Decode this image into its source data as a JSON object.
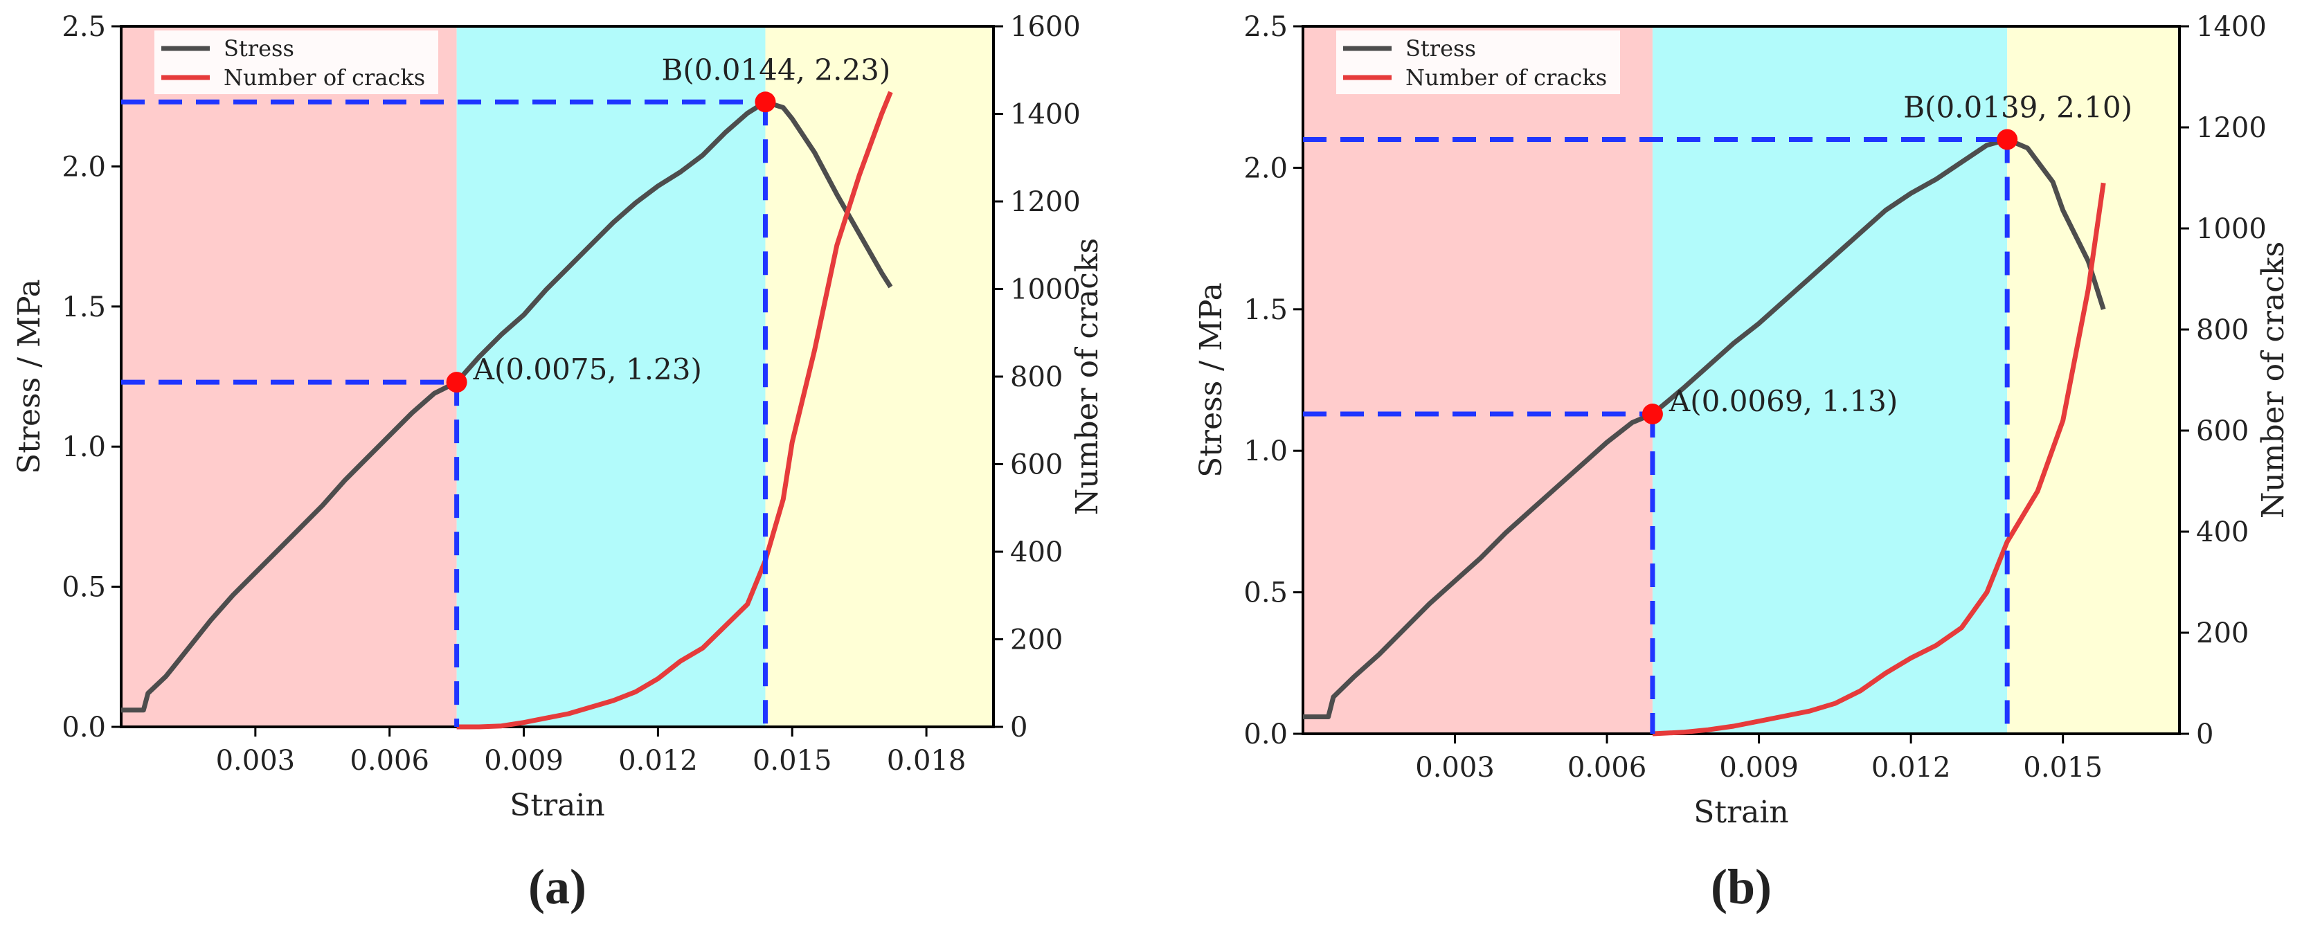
{
  "colors": {
    "stress": "#4d4d4d",
    "cracks": "#e63b3b",
    "guide": "#1f35ff",
    "marker": "#ff0a0a",
    "zone1": "#ffcccc",
    "zone2": "#b2fbfb",
    "zone3": "#ffffd6"
  },
  "chart_data": [
    {
      "type": "line",
      "panel_label": "(a)",
      "xlabel": "Strain",
      "ylabel": "Stress / MPa",
      "y2label": "Number of cracks",
      "xlim": [
        0,
        0.0195
      ],
      "ylim": [
        0,
        2.5
      ],
      "y2lim": [
        0,
        1600
      ],
      "x_ticks": [
        "0.003",
        "0.006",
        "0.009",
        "0.012",
        "0.015",
        "0.018"
      ],
      "y_ticks": [
        "0.0",
        "0.5",
        "1.0",
        "1.5",
        "2.0",
        "2.5"
      ],
      "y2_ticks": [
        "0",
        "200",
        "400",
        "600",
        "800",
        "1000",
        "1200",
        "1400",
        "1600"
      ],
      "legend": [
        "Stress",
        "Number of cracks"
      ],
      "legend_position": "top-left",
      "zones": [
        [
          0,
          0.0075
        ],
        [
          0.0075,
          0.0144
        ],
        [
          0.0144,
          0.0195
        ]
      ],
      "points": [
        {
          "label": "A(0.0075, 1.23)",
          "x": 0.0075,
          "y": 1.23
        },
        {
          "label": "B(0.0144, 2.23)",
          "x": 0.0144,
          "y": 2.23
        }
      ],
      "series": [
        {
          "name": "Stress",
          "axis": "left",
          "x": [
            0,
            0.0005,
            0.0006,
            0.001,
            0.0015,
            0.002,
            0.0025,
            0.003,
            0.0035,
            0.004,
            0.0045,
            0.005,
            0.0055,
            0.006,
            0.0065,
            0.007,
            0.0075,
            0.008,
            0.0085,
            0.009,
            0.0095,
            0.01,
            0.0105,
            0.011,
            0.0115,
            0.012,
            0.0125,
            0.013,
            0.0135,
            0.014,
            0.0144,
            0.0148,
            0.015,
            0.0155,
            0.016,
            0.0165,
            0.017,
            0.0172
          ],
          "values": [
            0.06,
            0.06,
            0.12,
            0.18,
            0.28,
            0.38,
            0.47,
            0.55,
            0.63,
            0.71,
            0.79,
            0.88,
            0.96,
            1.04,
            1.12,
            1.19,
            1.23,
            1.32,
            1.4,
            1.47,
            1.56,
            1.64,
            1.72,
            1.8,
            1.87,
            1.93,
            1.98,
            2.04,
            2.12,
            2.19,
            2.23,
            2.21,
            2.17,
            2.05,
            1.9,
            1.76,
            1.62,
            1.57
          ]
        },
        {
          "name": "Number of cracks",
          "axis": "right",
          "x": [
            0.0075,
            0.008,
            0.0085,
            0.009,
            0.0095,
            0.01,
            0.0105,
            0.011,
            0.0115,
            0.012,
            0.0125,
            0.013,
            0.0135,
            0.014,
            0.0144,
            0.0148,
            0.015,
            0.0155,
            0.016,
            0.0165,
            0.017,
            0.0172
          ],
          "values": [
            0,
            0,
            2,
            10,
            20,
            30,
            45,
            60,
            80,
            110,
            150,
            180,
            230,
            280,
            380,
            520,
            650,
            860,
            1100,
            1260,
            1400,
            1450
          ]
        }
      ]
    },
    {
      "type": "line",
      "panel_label": "(b)",
      "xlabel": "Strain",
      "ylabel": "Stress / MPa",
      "y2label": "Number of cracks",
      "xlim": [
        0,
        0.0173
      ],
      "ylim": [
        0,
        2.5
      ],
      "y2lim": [
        0,
        1400
      ],
      "x_ticks": [
        "0.003",
        "0.006",
        "0.009",
        "0.012",
        "0.015"
      ],
      "y_ticks": [
        "0.0",
        "0.5",
        "1.0",
        "1.5",
        "2.0",
        "2.5"
      ],
      "y2_ticks": [
        "0",
        "200",
        "400",
        "600",
        "800",
        "1000",
        "1200",
        "1400"
      ],
      "legend": [
        "Stress",
        "Number of cracks"
      ],
      "legend_position": "top-left",
      "zones": [
        [
          0,
          0.0069
        ],
        [
          0.0069,
          0.0139
        ],
        [
          0.0139,
          0.0173
        ]
      ],
      "points": [
        {
          "label": "A(0.0069, 1.13)",
          "x": 0.0069,
          "y": 1.13
        },
        {
          "label": "B(0.0139, 2.10)",
          "x": 0.0139,
          "y": 2.1
        }
      ],
      "series": [
        {
          "name": "Stress",
          "axis": "left",
          "x": [
            0,
            0.0005,
            0.0006,
            0.001,
            0.0015,
            0.002,
            0.0025,
            0.003,
            0.0035,
            0.004,
            0.0045,
            0.005,
            0.0055,
            0.006,
            0.0065,
            0.0069,
            0.0075,
            0.008,
            0.0085,
            0.009,
            0.0095,
            0.01,
            0.0105,
            0.011,
            0.0115,
            0.012,
            0.0125,
            0.013,
            0.0135,
            0.0139,
            0.0143,
            0.0148,
            0.015,
            0.0155,
            0.0158
          ],
          "values": [
            0.06,
            0.06,
            0.13,
            0.2,
            0.28,
            0.37,
            0.46,
            0.54,
            0.62,
            0.71,
            0.79,
            0.87,
            0.95,
            1.03,
            1.1,
            1.13,
            1.22,
            1.3,
            1.38,
            1.45,
            1.53,
            1.61,
            1.69,
            1.77,
            1.85,
            1.91,
            1.96,
            2.02,
            2.08,
            2.1,
            2.07,
            1.95,
            1.85,
            1.67,
            1.5
          ]
        },
        {
          "name": "Number of cracks",
          "axis": "right",
          "x": [
            0.0069,
            0.0075,
            0.008,
            0.0085,
            0.009,
            0.0095,
            0.01,
            0.0105,
            0.011,
            0.0115,
            0.012,
            0.0125,
            0.013,
            0.0135,
            0.0139,
            0.0145,
            0.015,
            0.0155,
            0.0158
          ],
          "values": [
            0,
            3,
            8,
            15,
            25,
            35,
            45,
            60,
            85,
            120,
            150,
            175,
            210,
            280,
            380,
            480,
            620,
            880,
            1090
          ]
        }
      ]
    }
  ]
}
